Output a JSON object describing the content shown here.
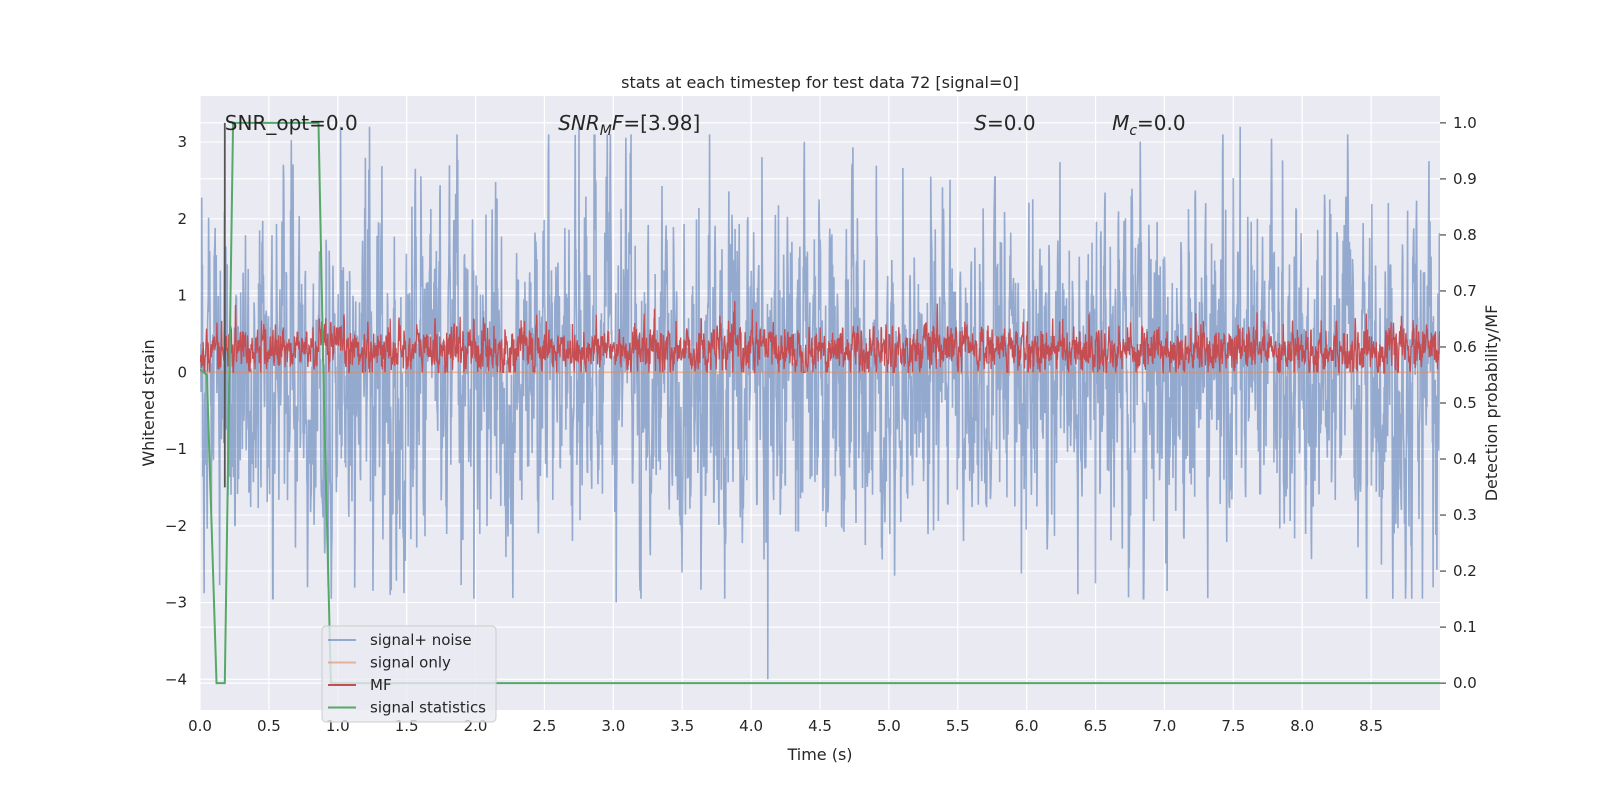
{
  "chart_data": {
    "type": "line",
    "title": "stats at each timestep for test data 72 [signal=0]",
    "xlabel": "Time (s)",
    "ylabel": "Whitened strain",
    "ylabel_right": "Detection probability/MF",
    "xlim": [
      0.0,
      9.0
    ],
    "ylim": [
      -4.4,
      3.6
    ],
    "ylim_right": [
      -0.048,
      1.048
    ],
    "x_ticks": [
      0.0,
      0.5,
      1.0,
      1.5,
      2.0,
      2.5,
      3.0,
      3.5,
      4.0,
      4.5,
      5.0,
      5.5,
      6.0,
      6.5,
      7.0,
      7.5,
      8.0,
      8.5
    ],
    "x_tick_labels": [
      "0.0",
      "0.5",
      "1.0",
      "1.5",
      "2.0",
      "2.5",
      "3.0",
      "3.5",
      "4.0",
      "4.5",
      "5.0",
      "5.5",
      "6.0",
      "6.5",
      "7.0",
      "7.5",
      "8.0",
      "8.5"
    ],
    "y_ticks": [
      3,
      2,
      1,
      0,
      -1,
      -2,
      -3,
      -4
    ],
    "y_tick_labels": [
      "3",
      "2",
      "1",
      "0",
      "−1",
      "−2",
      "−3",
      "−4"
    ],
    "y_right_ticks": [
      1.0,
      0.9,
      0.8,
      0.7,
      0.6,
      0.5,
      0.4,
      0.3,
      0.2,
      0.1,
      0.0
    ],
    "y_right_tick_labels": [
      "1.0",
      "0.9",
      "0.8",
      "0.7",
      "0.6",
      "0.5",
      "0.4",
      "0.3",
      "0.2",
      "0.1",
      "0.0"
    ],
    "grid": true,
    "background": "#eaeaf2",
    "annotations": [
      {
        "label": "SNR_opt=0.0",
        "x": 0.18,
        "y": 3.25
      },
      {
        "label": "SNR_MF=[3.98]",
        "x": 2.6,
        "y": 3.25,
        "main": "SNR",
        "sub": "M",
        "rest": "F=[3.98]"
      },
      {
        "label": "S=0.0",
        "x": 5.62,
        "y": 3.25,
        "main": "S",
        "rest": "=0.0"
      },
      {
        "label": "M_c=0.0",
        "x": 6.62,
        "y": 3.25,
        "main": "M",
        "sub": "c",
        "rest": "=0.0"
      }
    ],
    "legend": {
      "position": "lower-left",
      "entries": [
        {
          "name": "signal+ noise",
          "color": "#4c72b0",
          "alpha": 0.55
        },
        {
          "name": "signal only",
          "color": "#dd8452",
          "alpha": 0.55
        },
        {
          "name": "MF",
          "color": "#c44e52",
          "alpha": 1.0
        },
        {
          "name": "signal statistics",
          "color": "#55a868",
          "alpha": 1.0
        }
      ]
    },
    "series": [
      {
        "name": "signal+ noise",
        "axis": "left",
        "description": "whitened strain, dense noise, approx range -3.0 to 3.2 with outlier to -4.0 near t=4.12",
        "x_range": [
          0.0,
          9.0
        ],
        "sample_count": 3600,
        "noise_seed": 72,
        "spikes": [
          {
            "x": 1.02,
            "y": 3.2
          },
          {
            "x": 1.23,
            "y": 3.2
          },
          {
            "x": 2.75,
            "y": 3.2
          },
          {
            "x": 7.55,
            "y": 3.2
          },
          {
            "x": 4.12,
            "y": -4.0
          },
          {
            "x": 3.02,
            "y": -3.0
          },
          {
            "x": 1.38,
            "y": -2.9
          },
          {
            "x": 7.02,
            "y": -2.85
          },
          {
            "x": 0.78,
            "y": -2.8
          },
          {
            "x": 6.5,
            "y": -2.75
          },
          {
            "x": 8.95,
            "y": -2.8
          }
        ]
      },
      {
        "name": "signal only",
        "axis": "left",
        "constant": 0.0,
        "x_range": [
          0.0,
          9.0
        ]
      },
      {
        "name": "MF",
        "axis": "left",
        "description": "matched filter output, range approx 0.0 to 1.0",
        "x_range": [
          0.0,
          9.0
        ],
        "sample_count": 3600
      },
      {
        "name": "signal statistics",
        "axis": "right",
        "x": [
          0.0,
          0.05,
          0.12,
          0.18,
          0.24,
          0.86,
          0.9,
          0.95,
          9.0
        ],
        "y": [
          0.56,
          0.55,
          0.0,
          0.0,
          1.0,
          1.0,
          0.5,
          0.0,
          0.0
        ]
      },
      {
        "name": "marker",
        "axis": "left",
        "color": "#555555",
        "vertical_line": {
          "x": 0.18,
          "y_from": -1.5,
          "y_to": 3.25
        }
      }
    ]
  }
}
